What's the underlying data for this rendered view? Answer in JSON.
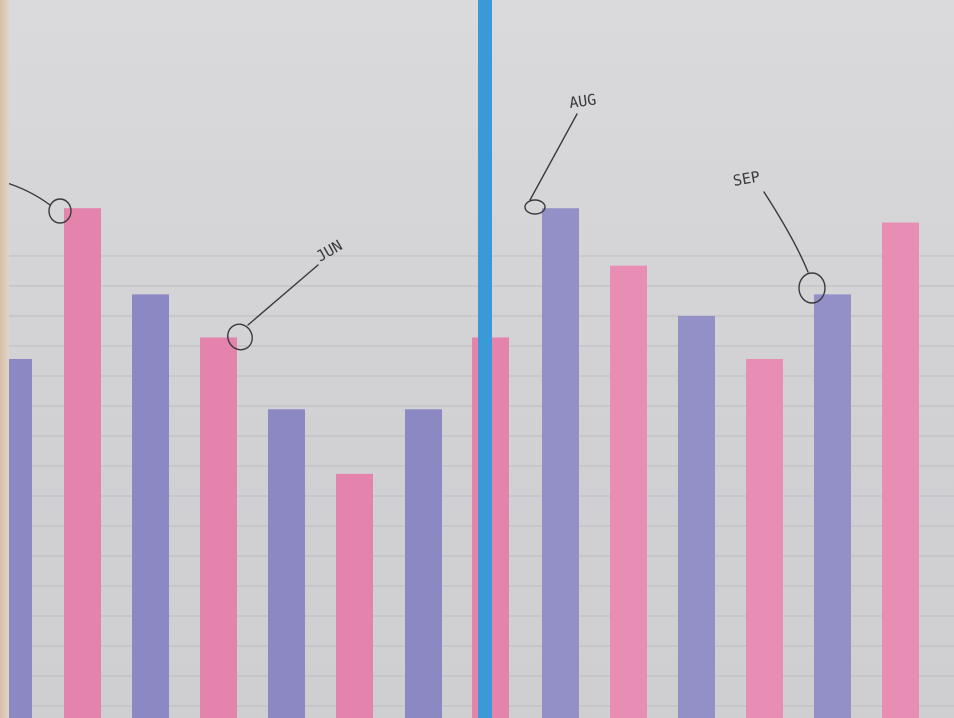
{
  "scene": {
    "left_panel": {
      "bars": [
        {
          "level": 0.5,
          "color": "#8c88c4"
        },
        {
          "level": 0.71,
          "color": "#e483ac"
        },
        {
          "level": 0.59,
          "color": "#8c88c4"
        },
        {
          "level": 0.53,
          "color": "#e483ac"
        },
        {
          "level": 0.43,
          "color": "#8c88c4"
        },
        {
          "level": 0.34,
          "color": "#e483ac"
        },
        {
          "level": 0.43,
          "color": "#8c88c4"
        },
        {
          "level": 0.53,
          "color": "#e483ac"
        }
      ],
      "annotations": [
        {
          "label": "",
          "target_bar": 1
        },
        {
          "label": "JUN",
          "target_bar": 3
        }
      ]
    },
    "right_panel": {
      "bars": [
        {
          "level": 0.71,
          "color": "#9290c6"
        },
        {
          "level": 0.63,
          "color": "#e88db4"
        },
        {
          "level": 0.56,
          "color": "#9290c6"
        },
        {
          "level": 0.5,
          "color": "#e88db4"
        },
        {
          "level": 0.59,
          "color": "#9290c6"
        },
        {
          "level": 0.69,
          "color": "#e88db4"
        }
      ],
      "annotations": [
        {
          "label": "AUG",
          "target_bar": 0
        },
        {
          "label": "SEP",
          "target_bar": 4
        }
      ]
    },
    "divider_color": "#3a9ad8"
  }
}
